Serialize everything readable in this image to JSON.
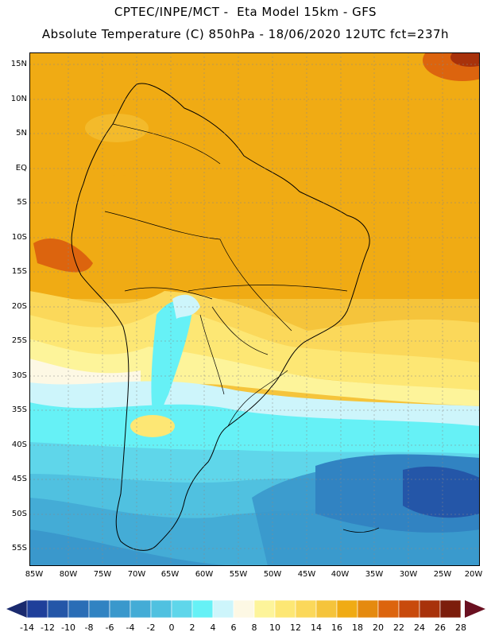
{
  "header": {
    "line1": "CPTEC/INPE/MCT -  Eta Model 15km - GFS",
    "line2": "Absolute Temperature (C) 850hPa - 18/06/2020 12UTC fct=237h"
  },
  "map": {
    "region": "South America",
    "variable": "Absolute Temperature (C)",
    "level": "850hPa",
    "lat_range": [
      -58,
      16
    ],
    "lon_range": [
      -86,
      -20
    ],
    "lat_ticks": [
      "15N",
      "10N",
      "5N",
      "EQ",
      "5S",
      "10S",
      "15S",
      "20S",
      "25S",
      "30S",
      "35S",
      "40S",
      "45S",
      "50S",
      "55S"
    ],
    "lon_ticks": [
      "85W",
      "80W",
      "75W",
      "70W",
      "65W",
      "60W",
      "55W",
      "50W",
      "45W",
      "40W",
      "35W",
      "30W",
      "25W",
      "20W"
    ]
  },
  "colorbar": {
    "labels": [
      "-14",
      "-12",
      "-10",
      "-8",
      "-6",
      "-4",
      "-2",
      "0",
      "2",
      "4",
      "6",
      "8",
      "10",
      "12",
      "14",
      "16",
      "18",
      "20",
      "22",
      "24",
      "26",
      "28"
    ],
    "colors": [
      "#1f3f9a",
      "#2456a8",
      "#2a6db6",
      "#3183c2",
      "#3a98cc",
      "#44acd6",
      "#50c1e0",
      "#5fd6ea",
      "#66f1f6",
      "#cdf5fb",
      "#fdf8e4",
      "#fdf49a",
      "#fde774",
      "#fbd85a",
      "#f5c43b",
      "#f0ab14",
      "#e58a0f",
      "#dc640e",
      "#c84a0c",
      "#a8320b",
      "#7c1d0c"
    ],
    "under_color": "#1a2a6e",
    "over_color": "#6a1020"
  }
}
